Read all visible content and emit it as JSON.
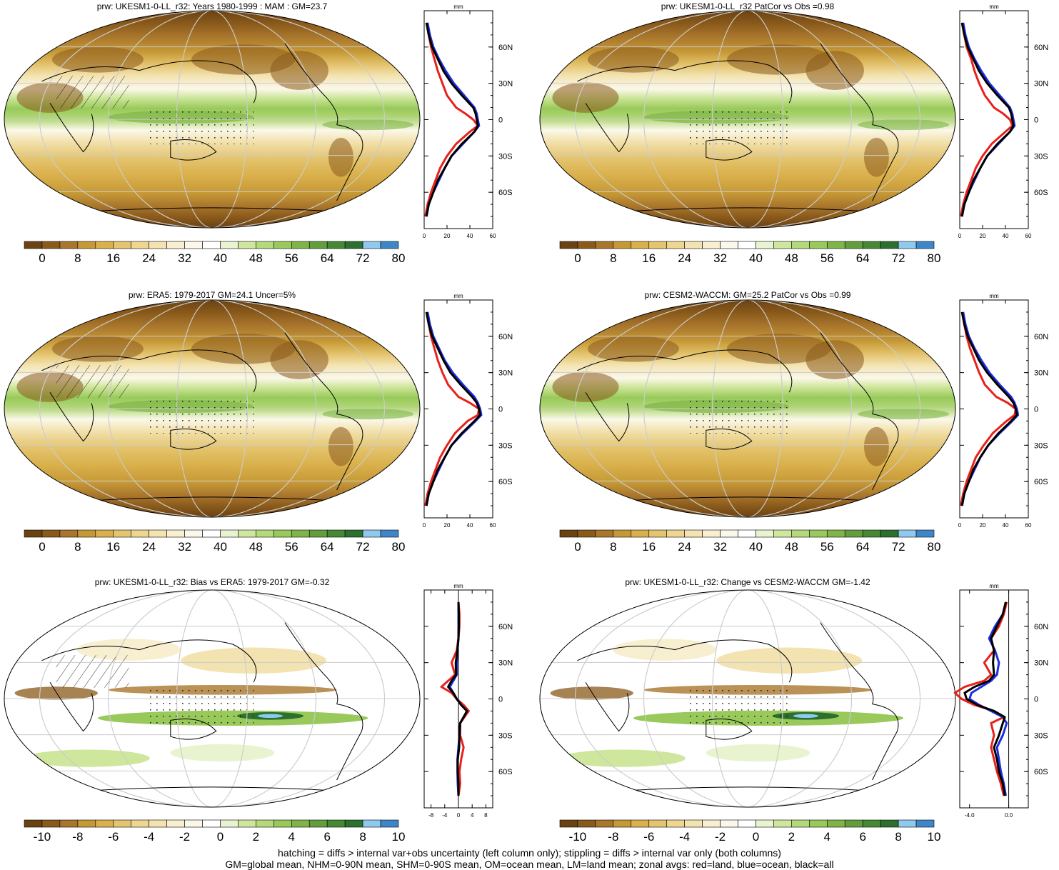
{
  "colorbars": {
    "abs": {
      "labels": [
        "0",
        "8",
        "16",
        "24",
        "32",
        "40",
        "48",
        "56",
        "64",
        "72",
        "80"
      ],
      "colors": [
        "#6b4212",
        "#8a5a1b",
        "#a9762c",
        "#c69937",
        "#d9b04b",
        "#e4c46e",
        "#eed691",
        "#f3e3b1",
        "#f7efd0",
        "#fbf8ea",
        "#ffffff",
        "#e8f4cf",
        "#cfe79d",
        "#b4d97a",
        "#98c95a",
        "#7fb548",
        "#639e3c",
        "#468834",
        "#2d6f2e",
        "#8ec9ee",
        "#3d86c8"
      ]
    },
    "diff": {
      "labels": [
        "-10",
        "-8",
        "-6",
        "-4",
        "-2",
        "0",
        "2",
        "4",
        "6",
        "8",
        "10"
      ],
      "colors": [
        "#6b4212",
        "#8a5a1b",
        "#a9762c",
        "#c69937",
        "#d9b04b",
        "#e4c46e",
        "#eed691",
        "#f3e3b1",
        "#f7efd0",
        "#fbf8ea",
        "#ffffff",
        "#e8f4cf",
        "#cfe79d",
        "#b4d97a",
        "#98c95a",
        "#7fb548",
        "#639e3c",
        "#468834",
        "#2d6f2e",
        "#8ec9ee",
        "#3d86c8"
      ]
    }
  },
  "lat_labels": [
    "60N",
    "30N",
    "0",
    "30S",
    "60S"
  ],
  "profile_unit": "mm",
  "chart_data": [
    {
      "type": "heatmap",
      "id": "p1",
      "title": "prw: UKESM1-0-LL_r32: Years 1980-1999 : MAM : GM=23.7",
      "colorbar": "abs",
      "map_kind": "abs",
      "profile": {
        "xticks": [
          "0",
          "20",
          "40",
          "60"
        ],
        "xlim": [
          0,
          60
        ],
        "lat": [
          -80,
          -70,
          -60,
          -50,
          -40,
          -30,
          -20,
          -10,
          -5,
          0,
          5,
          10,
          20,
          30,
          40,
          50,
          60,
          70,
          80
        ],
        "series": [
          {
            "color": "red",
            "values": [
              1,
              3,
              6,
              10,
              14,
              20,
              28,
              40,
              47,
              43,
              36,
              28,
              20,
              16,
              12,
              9,
              6,
              4,
              2
            ]
          },
          {
            "color": "blue",
            "values": [
              2,
              4,
              8,
              13,
              18,
              24,
              34,
              44,
              48,
              47,
              46,
              44,
              35,
              26,
              19,
              13,
              8,
              5,
              3
            ]
          },
          {
            "color": "black",
            "values": [
              2,
              4,
              8,
              12,
              18,
              24,
              33,
              44,
              47,
              46,
              45,
              43,
              33,
              24,
              17,
              12,
              7,
              4,
              2
            ]
          }
        ]
      }
    },
    {
      "type": "heatmap",
      "id": "p2",
      "title": "prw: UKESM1-0-LL_r32 PatCor vs Obs =0.98",
      "colorbar": "abs",
      "map_kind": "abs",
      "profile": {
        "xticks": [
          "0",
          "20",
          "40",
          "60"
        ],
        "xlim": [
          0,
          60
        ],
        "lat": [
          -80,
          -70,
          -60,
          -50,
          -40,
          -30,
          -20,
          -10,
          -5,
          0,
          5,
          10,
          20,
          30,
          40,
          50,
          60,
          70,
          80
        ],
        "series": [
          {
            "color": "red",
            "values": [
              1,
              3,
              6,
              10,
              14,
              20,
              28,
              40,
              46,
              44,
              38,
              30,
              22,
              17,
              13,
              10,
              6,
              4,
              2
            ]
          },
          {
            "color": "blue",
            "values": [
              2,
              4,
              8,
              13,
              18,
              24,
              34,
              44,
              48,
              47,
              46,
              44,
              35,
              26,
              19,
              13,
              8,
              5,
              3
            ]
          },
          {
            "color": "black",
            "values": [
              2,
              4,
              8,
              12,
              18,
              24,
              33,
              44,
              47,
              46,
              45,
              43,
              33,
              24,
              17,
              12,
              7,
              4,
              2
            ]
          }
        ]
      }
    },
    {
      "type": "heatmap",
      "id": "p3",
      "title": "prw: ERA5: 1979-2017 GM=24.1 Uncer=5%",
      "colorbar": "abs",
      "map_kind": "abs",
      "profile": {
        "xticks": [
          "0",
          "20",
          "40",
          "60"
        ],
        "xlim": [
          0,
          60
        ],
        "lat": [
          -80,
          -70,
          -60,
          -50,
          -40,
          -30,
          -20,
          -10,
          -5,
          0,
          5,
          10,
          20,
          30,
          40,
          50,
          60,
          70,
          80
        ],
        "series": [
          {
            "color": "red",
            "values": [
              1,
              3,
              6,
              10,
              14,
              20,
              27,
              38,
              47,
              48,
              40,
              30,
              21,
              16,
              12,
              9,
              6,
              4,
              2
            ]
          },
          {
            "color": "blue",
            "values": [
              2,
              4,
              8,
              13,
              18,
              24,
              34,
              45,
              50,
              49,
              47,
              44,
              34,
              25,
              18,
              13,
              8,
              5,
              3
            ]
          },
          {
            "color": "black",
            "values": [
              2,
              4,
              8,
              12,
              18,
              24,
              33,
              44,
              49,
              48,
              46,
              42,
              32,
              23,
              17,
              12,
              7,
              4,
              2
            ]
          }
        ]
      }
    },
    {
      "type": "heatmap",
      "id": "p4",
      "title": "prw: CESM2-WACCM: GM=25.2 PatCor vs Obs =0.99",
      "colorbar": "abs",
      "map_kind": "abs",
      "profile": {
        "xticks": [
          "0",
          "20",
          "40",
          "60"
        ],
        "xlim": [
          0,
          60
        ],
        "lat": [
          -80,
          -70,
          -60,
          -50,
          -40,
          -30,
          -20,
          -10,
          -5,
          0,
          5,
          10,
          20,
          30,
          40,
          50,
          60,
          70,
          80
        ],
        "series": [
          {
            "color": "red",
            "values": [
              1,
              3,
              6,
              10,
              14,
              21,
              29,
              41,
              48,
              49,
              42,
              32,
              22,
              17,
              13,
              9,
              6,
              4,
              2
            ]
          },
          {
            "color": "blue",
            "values": [
              2,
              4,
              8,
              13,
              18,
              25,
              35,
              46,
              51,
              50,
              48,
              45,
              35,
              26,
              19,
              13,
              8,
              5,
              3
            ]
          },
          {
            "color": "black",
            "values": [
              2,
              4,
              8,
              12,
              18,
              25,
              34,
              45,
              50,
              49,
              47,
              43,
              33,
              24,
              17,
              12,
              7,
              4,
              2
            ]
          }
        ]
      }
    },
    {
      "type": "heatmap",
      "id": "p5",
      "title": "prw: UKESM1-0-LL_r32: Bias vs ERA5: 1979-2017 GM=-0.32",
      "colorbar": "diff",
      "map_kind": "bias",
      "profile": {
        "xticks": [
          "-8",
          "-4",
          "0",
          "4",
          "8"
        ],
        "xlim": [
          -10,
          10
        ],
        "lat": [
          -80,
          -70,
          -60,
          -50,
          -40,
          -30,
          -20,
          -10,
          -5,
          0,
          5,
          10,
          15,
          20,
          30,
          40,
          50,
          60,
          70,
          80
        ],
        "series": [
          {
            "color": "red",
            "values": [
              0,
              0.5,
              0.3,
              0.8,
              1.5,
              0.5,
              0.5,
              3,
              1.5,
              -0.5,
              -2,
              -5,
              -3,
              -1,
              -2,
              -0.5,
              0,
              0.3,
              0.3,
              0
            ]
          },
          {
            "color": "blue",
            "values": [
              0,
              -0.2,
              -0.3,
              -0.3,
              0,
              0.3,
              0.5,
              2.5,
              0.8,
              -0.5,
              -1.5,
              -2.5,
              -1.5,
              -0.5,
              -0.5,
              -0.3,
              0,
              0,
              0,
              0
            ]
          },
          {
            "color": "black",
            "values": [
              0,
              0,
              -0.2,
              -0.2,
              0.2,
              0.3,
              0.5,
              2.5,
              0.8,
              -0.5,
              -1.5,
              -3,
              -2,
              -0.7,
              -0.8,
              -0.3,
              0,
              0.1,
              0.1,
              0
            ]
          }
        ]
      }
    },
    {
      "type": "heatmap",
      "id": "p6",
      "title": "prw: UKESM1-0-LL_r32: Change vs CESM2-WACCM GM=-1.42",
      "colorbar": "diff",
      "map_kind": "change",
      "profile": {
        "xticks": [
          "-4.0",
          "0.0"
        ],
        "xlim": [
          -5,
          2
        ],
        "lat": [
          -80,
          -70,
          -60,
          -50,
          -40,
          -30,
          -20,
          -15,
          -10,
          -5,
          0,
          5,
          10,
          15,
          20,
          30,
          40,
          50,
          60,
          70,
          80
        ],
        "series": [
          {
            "color": "red",
            "values": [
              -0.5,
              -0.8,
              -1.2,
              -1.5,
              -1.8,
              -1.5,
              -1.8,
              -0.5,
              -1.5,
              -3.5,
              -4.8,
              -5.5,
              -4.5,
              -2.5,
              -1.8,
              -2.5,
              -1.5,
              -1.8,
              -1.0,
              -0.5,
              -0.2
            ]
          },
          {
            "color": "blue",
            "values": [
              -0.3,
              -0.5,
              -0.8,
              -1.0,
              -1.2,
              -0.6,
              -0.2,
              -0.6,
              -1.8,
              -3.0,
              -4.0,
              -3.8,
              -2.8,
              -1.8,
              -1.2,
              -1.0,
              -1.4,
              -2.0,
              -1.4,
              -0.6,
              -0.3
            ]
          },
          {
            "color": "black",
            "values": [
              -0.4,
              -0.6,
              -1.0,
              -1.2,
              -1.5,
              -1.0,
              -0.6,
              -0.4,
              -1.5,
              -3.2,
              -4.3,
              -4.5,
              -3.5,
              -2.0,
              -1.5,
              -1.6,
              -1.5,
              -1.8,
              -1.2,
              -0.6,
              -0.3
            ]
          }
        ]
      }
    }
  ],
  "footer": {
    "line1": "hatching = diffs > internal var+obs uncertainty (left column only); stippling = diffs > internal var only (both columns)",
    "line2": "GM=global mean, NHM=0-90N mean, SHM=0-90S mean, OM=ocean mean, LM=land mean; zonal avgs: red=land, blue=ocean, black=all"
  }
}
